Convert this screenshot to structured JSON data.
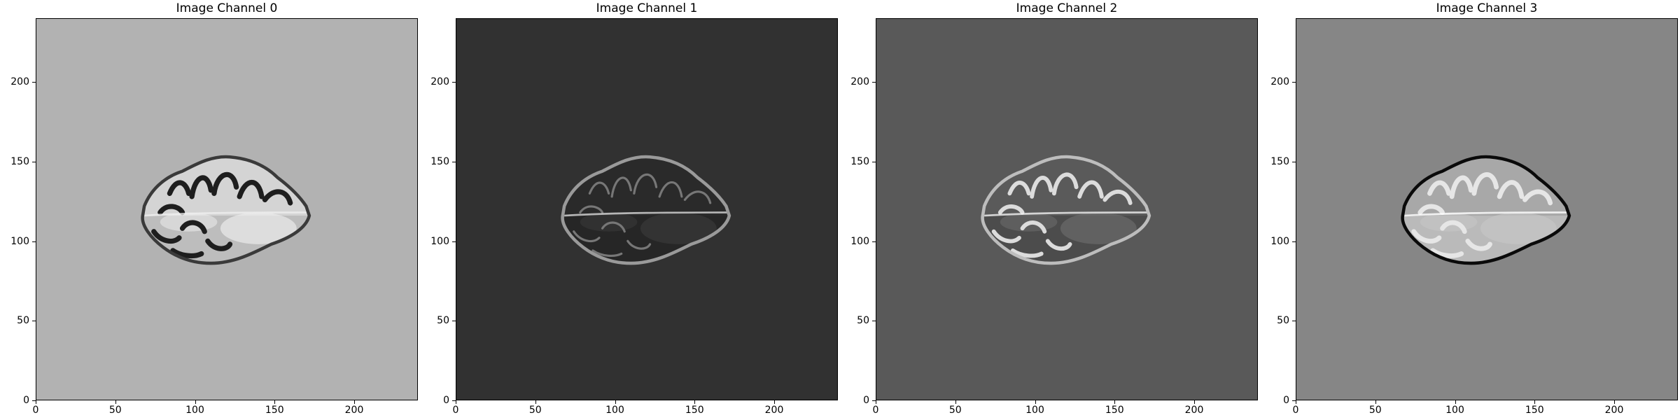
{
  "figure": {
    "panels": [
      {
        "title": "Image Channel 0",
        "background": "#b2b2b2",
        "tone": "bright"
      },
      {
        "title": "Image Channel 1",
        "background": "#313131",
        "tone": "dark"
      },
      {
        "title": "Image Channel 2",
        "background": "#595959",
        "tone": "mid"
      },
      {
        "title": "Image Channel 3",
        "background": "#868686",
        "tone": "flair"
      }
    ],
    "axis": {
      "x_ticks": [
        "0",
        "50",
        "100",
        "150",
        "200"
      ],
      "y_ticks": [
        "0",
        "50",
        "100",
        "150",
        "200"
      ],
      "xlim": [
        0,
        240
      ],
      "ylim": [
        240,
        0
      ]
    }
  }
}
